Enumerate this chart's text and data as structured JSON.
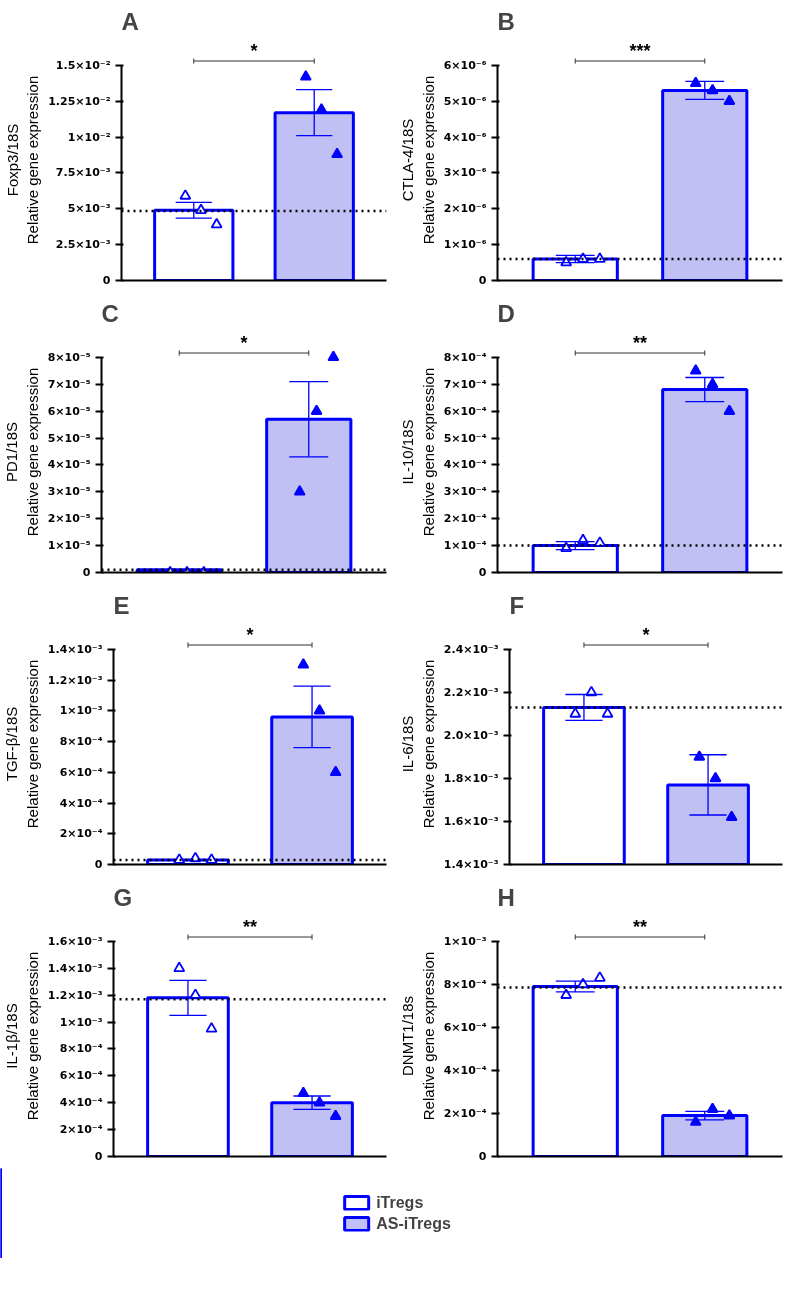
{
  "chart_data": [
    {
      "type": "bar",
      "title": "A",
      "ylabel": "Foxp3/18S\nRelative gene expression",
      "categories": [
        null,
        null
      ],
      "tick_labels": "y",
      "ylim": [
        0,
        0.015
      ],
      "yticks": [
        0,
        {
          "value": 0.0025,
          "label": "2.5×10⁻³"
        },
        {
          "value": 0.005,
          "label": "5×10⁻³"
        },
        {
          "value": 0.0075,
          "label": "7.5×10⁻³"
        },
        {
          "value": 0.01,
          "label": "1×10⁻²"
        },
        {
          "value": 0.0125,
          "label": "1.25×10⁻²"
        },
        {
          "value": 0.015,
          "label": "1.5×10⁻²"
        }
      ],
      "series": [
        {
          "color": "#ffffff",
          "values": [
            0.0049,
            null
          ],
          "errors": [
            0.00055,
            null
          ]
        },
        {
          "color": "#c0c0f5",
          "values": [
            null,
            0.0117
          ],
          "errors": [
            null,
            0.0016
          ]
        },
        {
          "type": "scatter",
          "marker": "triangle",
          "color": "#0000ff",
          "colors": [
            "#ffffff",
            "#0000ff"
          ],
          "values": [
            0.0059,
            0.0142
          ]
        },
        {
          "type": "scatter",
          "marker": "triangle",
          "color": "#0000ff",
          "colors": [
            "#ffffff",
            "#0000ff"
          ],
          "values": [
            0.0049,
            0.0119
          ]
        },
        {
          "type": "scatter",
          "marker": "triangle",
          "color": "#0000ff",
          "colors": [
            "#ffffff",
            "#0000ff"
          ],
          "values": [
            0.0039,
            0.0088
          ]
        }
      ],
      "ref_lines": [
        {
          "axis": "y",
          "value": 0.00485,
          "line_style": "dotted",
          "color": "#000000"
        }
      ],
      "annotations": [
        "*"
      ]
    },
    {
      "type": "bar",
      "title": "B",
      "ylabel": "CTLA-4/18S\nRelative gene expression",
      "categories": [
        null,
        null
      ],
      "tick_labels": "y",
      "ylim": [
        0,
        6e-06
      ],
      "yticks": [
        0,
        {
          "value": 1e-06,
          "label": "1×10⁻⁶"
        },
        {
          "value": 2e-06,
          "label": "2×10⁻⁶"
        },
        {
          "value": 3e-06,
          "label": "3×10⁻⁶"
        },
        {
          "value": 4e-06,
          "label": "4×10⁻⁶"
        },
        {
          "value": 5e-06,
          "label": "5×10⁻⁶"
        },
        {
          "value": 6e-06,
          "label": "6×10⁻⁶"
        }
      ],
      "series": [
        {
          "color": "#ffffff",
          "values": [
            6e-07,
            null
          ],
          "errors": [
            1e-07,
            null
          ]
        },
        {
          "color": "#c0c0f5",
          "values": [
            null,
            5.3e-06
          ],
          "errors": [
            null,
            2.5e-07
          ]
        },
        {
          "type": "scatter",
          "marker": "triangle",
          "color": "#0000ff",
          "colors": [
            "#ffffff",
            "#0000ff"
          ],
          "values": [
            5e-07,
            5.5e-06
          ]
        },
        {
          "type": "scatter",
          "marker": "triangle",
          "color": "#0000ff",
          "colors": [
            "#ffffff",
            "#0000ff"
          ],
          "values": [
            6e-07,
            5.3e-06
          ]
        },
        {
          "type": "scatter",
          "marker": "triangle",
          "color": "#0000ff",
          "colors": [
            "#ffffff",
            "#0000ff"
          ],
          "values": [
            6e-07,
            5e-06
          ]
        }
      ],
      "ref_lines": [
        {
          "axis": "y",
          "value": 6e-07,
          "line_style": "dotted",
          "color": "#000000"
        }
      ],
      "annotations": [
        "***"
      ]
    },
    {
      "type": "bar",
      "title": "C",
      "ylabel": "PD1/18S\nRelative gene expression",
      "categories": [
        null,
        null
      ],
      "tick_labels": "y",
      "ylim": [
        0,
        8e-05
      ],
      "yticks": [
        0,
        {
          "value": 1e-05,
          "label": "1×10⁻⁵"
        },
        {
          "value": 2e-05,
          "label": "2×10⁻⁵"
        },
        {
          "value": 3e-05,
          "label": "3×10⁻⁵"
        },
        {
          "value": 4e-05,
          "label": "4×10⁻⁵"
        },
        {
          "value": 5e-05,
          "label": "5×10⁻⁵"
        },
        {
          "value": 6e-05,
          "label": "6×10⁻⁵"
        },
        {
          "value": 7e-05,
          "label": "7×10⁻⁵"
        },
        {
          "value": 8e-05,
          "label": "8×10⁻⁵"
        }
      ],
      "series": [
        {
          "color": "#ffffff",
          "values": [
            1e-06,
            null
          ]
        },
        {
          "color": "#c0c0f5",
          "values": [
            null,
            5.7e-05
          ],
          "errors": [
            null,
            1.4e-05
          ]
        },
        {
          "type": "scatter",
          "marker": "triangle",
          "color": "#0000ff",
          "colors": [
            "#ffffff",
            "#0000ff"
          ],
          "values": [
            0,
            3e-05
          ]
        },
        {
          "type": "scatter",
          "marker": "triangle",
          "color": "#0000ff",
          "colors": [
            "#ffffff",
            "#0000ff"
          ],
          "values": [
            0,
            6e-05
          ]
        },
        {
          "type": "scatter",
          "marker": "triangle",
          "color": "#0000ff",
          "colors": [
            "#ffffff",
            "#0000ff"
          ],
          "values": [
            0,
            8e-05
          ]
        }
      ],
      "ref_lines": [
        {
          "axis": "y",
          "value": 1e-06,
          "line_style": "dotted",
          "color": "#000000"
        }
      ],
      "annotations": [
        "*"
      ]
    },
    {
      "type": "bar",
      "title": "D",
      "ylabel": "IL-10/18S\nRelative gene expression",
      "categories": [
        null,
        null
      ],
      "tick_labels": "y",
      "ylim": [
        0,
        0.0008
      ],
      "yticks": [
        0,
        {
          "value": 0.0001,
          "label": "1×10⁻⁴"
        },
        {
          "value": 0.0002,
          "label": "2×10⁻⁴"
        },
        {
          "value": 0.0003,
          "label": "3×10⁻⁴"
        },
        {
          "value": 0.0004,
          "label": "4×10⁻⁴"
        },
        {
          "value": 0.0005,
          "label": "5×10⁻⁴"
        },
        {
          "value": 0.0006,
          "label": "6×10⁻⁴"
        },
        {
          "value": 0.0007,
          "label": "7×10⁻⁴"
        },
        {
          "value": 0.0008,
          "label": "8×10⁻⁴"
        }
      ],
      "series": [
        {
          "color": "#ffffff",
          "values": [
            0.0001,
            null
          ],
          "errors": [
            1.5e-05,
            null
          ]
        },
        {
          "color": "#c0c0f5",
          "values": [
            null,
            0.00068
          ],
          "errors": [
            null,
            4.5e-05
          ]
        },
        {
          "type": "scatter",
          "marker": "triangle",
          "color": "#0000ff",
          "colors": [
            "#ffffff",
            "#0000ff"
          ],
          "values": [
            9e-05,
            0.00075
          ]
        },
        {
          "type": "scatter",
          "marker": "triangle",
          "color": "#0000ff",
          "colors": [
            "#ffffff",
            "#0000ff"
          ],
          "values": [
            0.00012,
            0.0007
          ]
        },
        {
          "type": "scatter",
          "marker": "triangle",
          "color": "#0000ff",
          "colors": [
            "#ffffff",
            "#0000ff"
          ],
          "values": [
            0.00011,
            0.0006
          ]
        }
      ],
      "ref_lines": [
        {
          "axis": "y",
          "value": 0.0001,
          "line_style": "dotted",
          "color": "#000000"
        }
      ],
      "annotations": [
        "**"
      ]
    },
    {
      "type": "bar",
      "title": "E",
      "ylabel": "TGF-β/18S\nRelative gene expression",
      "categories": [
        null,
        null
      ],
      "tick_labels": "y",
      "ylim": [
        0,
        0.0014
      ],
      "yticks": [
        0,
        {
          "value": 0.0002,
          "label": "2×10⁻⁴"
        },
        {
          "value": 0.0004,
          "label": "4×10⁻⁴"
        },
        {
          "value": 0.0006,
          "label": "6×10⁻⁴"
        },
        {
          "value": 0.0008,
          "label": "8×10⁻⁴"
        },
        {
          "value": 0.001,
          "label": "1×10⁻³"
        },
        {
          "value": 0.0012,
          "label": "1.2×10⁻³"
        },
        {
          "value": 0.0014,
          "label": "1.4×10⁻³"
        }
      ],
      "series": [
        {
          "color": "#ffffff",
          "values": [
            3e-05,
            null
          ]
        },
        {
          "color": "#c0c0f5",
          "values": [
            null,
            0.00096
          ],
          "errors": [
            null,
            0.0002
          ]
        },
        {
          "type": "scatter",
          "marker": "triangle",
          "color": "#0000ff",
          "colors": [
            "#ffffff",
            "#0000ff"
          ],
          "values": [
            3e-05,
            0.0013
          ]
        },
        {
          "type": "scatter",
          "marker": "triangle",
          "color": "#0000ff",
          "colors": [
            "#ffffff",
            "#0000ff"
          ],
          "values": [
            4e-05,
            0.001
          ]
        },
        {
          "type": "scatter",
          "marker": "triangle",
          "color": "#0000ff",
          "colors": [
            "#ffffff",
            "#0000ff"
          ],
          "values": [
            3e-05,
            0.0006
          ]
        }
      ],
      "ref_lines": [
        {
          "axis": "y",
          "value": 3e-05,
          "line_style": "dotted",
          "color": "#000000"
        }
      ],
      "annotations": [
        "*"
      ]
    },
    {
      "type": "bar",
      "title": "F",
      "ylabel": "IL-6/18S\nRelative gene expression",
      "categories": [
        null,
        null
      ],
      "tick_labels": "y",
      "ylim": [
        0.0014,
        0.0024
      ],
      "yticks": [
        {
          "value": 0.0014,
          "label": "1.4×10⁻³"
        },
        {
          "value": 0.0016,
          "label": "1.6×10⁻³"
        },
        {
          "value": 0.0018,
          "label": "1.8×10⁻³"
        },
        {
          "value": 0.002,
          "label": "2.0×10⁻³"
        },
        {
          "value": 0.0022,
          "label": "2.2×10⁻³"
        },
        {
          "value": 0.0024,
          "label": "2.4×10⁻³"
        }
      ],
      "series": [
        {
          "color": "#ffffff",
          "values": [
            0.00213,
            null
          ],
          "errors": [
            6e-05,
            null
          ]
        },
        {
          "color": "#c0c0f5",
          "values": [
            null,
            0.00177
          ],
          "errors": [
            null,
            0.00014
          ]
        },
        {
          "type": "scatter",
          "marker": "triangle",
          "color": "#0000ff",
          "colors": [
            "#ffffff",
            "#0000ff"
          ],
          "values": [
            0.0021,
            0.0019
          ]
        },
        {
          "type": "scatter",
          "marker": "triangle",
          "color": "#0000ff",
          "colors": [
            "#ffffff",
            "#0000ff"
          ],
          "values": [
            0.0022,
            0.0018
          ]
        },
        {
          "type": "scatter",
          "marker": "triangle",
          "color": "#0000ff",
          "colors": [
            "#ffffff",
            "#0000ff"
          ],
          "values": [
            0.0021,
            0.00162
          ]
        }
      ],
      "ref_lines": [
        {
          "axis": "y",
          "value": 0.00213,
          "line_style": "dotted",
          "color": "#000000"
        }
      ],
      "annotations": [
        "*"
      ]
    },
    {
      "type": "bar",
      "title": "G",
      "ylabel": "IL-1β/18S\nRelative gene expression",
      "categories": [
        null,
        null
      ],
      "tick_labels": "y",
      "ylim": [
        0,
        0.0016
      ],
      "yticks": [
        0,
        {
          "value": 0.0002,
          "label": "2×10⁻⁴"
        },
        {
          "value": 0.0004,
          "label": "4×10⁻⁴"
        },
        {
          "value": 0.0006,
          "label": "6×10⁻⁴"
        },
        {
          "value": 0.0008,
          "label": "8×10⁻⁴"
        },
        {
          "value": 0.001,
          "label": "1×10⁻³"
        },
        {
          "value": 0.0012,
          "label": "1.2×10⁻³"
        },
        {
          "value": 0.0014,
          "label": "1.4×10⁻³"
        },
        {
          "value": 0.0016,
          "label": "1.6×10⁻³"
        }
      ],
      "series": [
        {
          "color": "#ffffff",
          "values": [
            0.00118,
            null
          ],
          "errors": [
            0.00013,
            null
          ]
        },
        {
          "color": "#c0c0f5",
          "values": [
            null,
            0.0004
          ],
          "errors": [
            null,
            5e-05
          ]
        },
        {
          "type": "scatter",
          "marker": "triangle",
          "color": "#0000ff",
          "colors": [
            "#ffffff",
            "#0000ff"
          ],
          "values": [
            0.0014,
            0.00047
          ]
        },
        {
          "type": "scatter",
          "marker": "triangle",
          "color": "#0000ff",
          "colors": [
            "#ffffff",
            "#0000ff"
          ],
          "values": [
            0.0012,
            0.0004
          ]
        },
        {
          "type": "scatter",
          "marker": "triangle",
          "color": "#0000ff",
          "colors": [
            "#ffffff",
            "#0000ff"
          ],
          "values": [
            0.00095,
            0.0003
          ]
        }
      ],
      "ref_lines": [
        {
          "axis": "y",
          "value": 0.00117,
          "line_style": "dotted",
          "color": "#000000"
        }
      ],
      "annotations": [
        "**"
      ]
    },
    {
      "type": "bar",
      "title": "H",
      "ylabel": "DNMT1/18s\nRelative gene expression",
      "categories": [
        null,
        null
      ],
      "tick_labels": "y",
      "ylim": [
        0,
        0.001
      ],
      "legend": "bottom",
      "yticks": [
        0,
        {
          "value": 0.0002,
          "label": "2×10⁻⁴"
        },
        {
          "value": 0.0004,
          "label": "4×10⁻⁴"
        },
        {
          "value": 0.0006,
          "label": "6×10⁻⁴"
        },
        {
          "value": 0.0008,
          "label": "8×10⁻⁴"
        },
        {
          "value": 0.001,
          "label": "1×10⁻³"
        }
      ],
      "series": [
        {
          "name": "iTregs",
          "color": "#ffffff",
          "values": [
            0.00079,
            null
          ],
          "errors": [
            2.5e-05,
            null
          ]
        },
        {
          "name": "AS-iTregs",
          "color": "#c0c0f5",
          "values": [
            null,
            0.00019
          ],
          "errors": [
            null,
            2e-05
          ]
        },
        {
          "type": "scatter",
          "marker": "triangle",
          "color": "#0000ff",
          "colors": [
            "#ffffff",
            "#0000ff"
          ],
          "values": [
            0.00075,
            0.00016
          ]
        },
        {
          "type": "scatter",
          "marker": "triangle",
          "color": "#0000ff",
          "colors": [
            "#ffffff",
            "#0000ff"
          ],
          "values": [
            0.0008,
            0.00022
          ]
        },
        {
          "type": "scatter",
          "marker": "triangle",
          "color": "#0000ff",
          "colors": [
            "#ffffff",
            "#0000ff"
          ],
          "values": [
            0.00083,
            0.00019
          ]
        }
      ],
      "ref_lines": [
        {
          "axis": "y",
          "value": 0.000785,
          "line_style": "dotted",
          "color": "#000000"
        }
      ],
      "annotations": [
        "**"
      ]
    }
  ]
}
